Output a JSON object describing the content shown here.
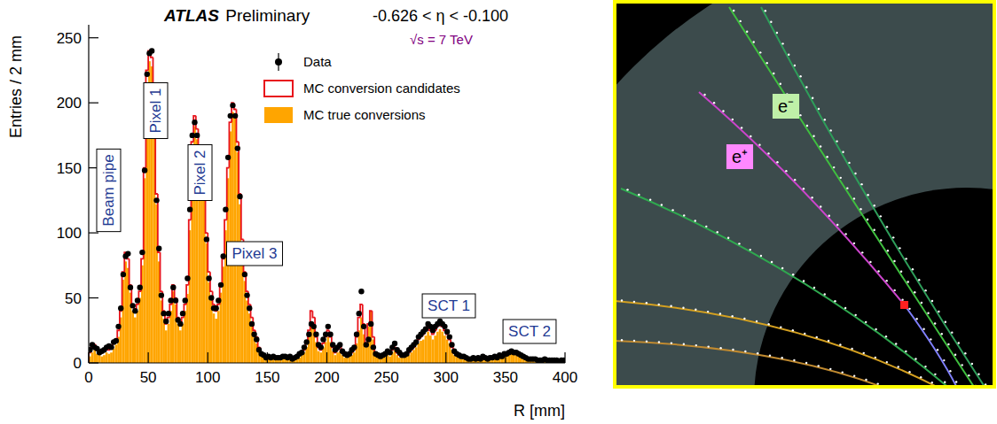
{
  "chart_data": {
    "type": "histogram",
    "title": "ATLAS",
    "subtitle": "Preliminary",
    "annotations": [
      "-0.626 < η < -0.100",
      "√s = 7 TeV"
    ],
    "region_labels": [
      "Beam pipe",
      "Pixel 1",
      "Pixel 2",
      "Pixel 3",
      "SCT 1",
      "SCT 2"
    ],
    "xlabel": "R [mm]",
    "ylabel": "Entries / 2 mm",
    "xlim": [
      0,
      400
    ],
    "ylim": [
      0,
      260
    ],
    "xticks": [
      0,
      50,
      100,
      150,
      200,
      250,
      300,
      350,
      400
    ],
    "yticks": [
      0,
      50,
      100,
      150,
      200,
      250
    ],
    "grid": false,
    "legend": "top-right",
    "bins": [
      0,
      2,
      4,
      6,
      8,
      10,
      12,
      14,
      16,
      18,
      20,
      22,
      24,
      26,
      28,
      30,
      32,
      34,
      36,
      38,
      40,
      42,
      44,
      46,
      48,
      50,
      52,
      54,
      56,
      58,
      60,
      62,
      64,
      66,
      68,
      70,
      72,
      74,
      76,
      78,
      80,
      82,
      84,
      86,
      88,
      90,
      92,
      94,
      96,
      98,
      100,
      102,
      104,
      106,
      108,
      110,
      112,
      114,
      116,
      118,
      120,
      122,
      124,
      126,
      128,
      130,
      132,
      134,
      136,
      138,
      140,
      142,
      144,
      146,
      148,
      150,
      152,
      154,
      156,
      158,
      160,
      162,
      164,
      166,
      168,
      170,
      172,
      174,
      176,
      178,
      180,
      182,
      184,
      186,
      188,
      190,
      192,
      194,
      196,
      198,
      200,
      202,
      204,
      206,
      208,
      210,
      212,
      214,
      216,
      218,
      220,
      222,
      224,
      226,
      228,
      230,
      232,
      234,
      236,
      238,
      240,
      242,
      244,
      246,
      248,
      250,
      252,
      254,
      256,
      258,
      260,
      262,
      264,
      266,
      268,
      270,
      272,
      274,
      276,
      278,
      280,
      282,
      284,
      286,
      288,
      290,
      292,
      294,
      296,
      298,
      300,
      302,
      304,
      306,
      308,
      310,
      312,
      314,
      316,
      318,
      320,
      322,
      324,
      326,
      328,
      330,
      332,
      334,
      336,
      338,
      340,
      342,
      344,
      346,
      348,
      350,
      352,
      354,
      356,
      358,
      360,
      362,
      364,
      366,
      368,
      370,
      372,
      374,
      376,
      378,
      380,
      382,
      384,
      386,
      388,
      390,
      392,
      394,
      396,
      398,
      400
    ],
    "series": [
      {
        "name": "Data",
        "type": "scatter",
        "marker": "circle",
        "color": "#000000",
        "values": [
          10,
          14,
          12,
          11,
          8,
          9,
          10,
          12,
          13,
          12,
          16,
          17,
          28,
          42,
          68,
          82,
          84,
          58,
          44,
          40,
          48,
          58,
          85,
          148,
          222,
          238,
          240,
          185,
          125,
          88,
          52,
          38,
          32,
          38,
          48,
          58,
          48,
          33,
          30,
          38,
          48,
          65,
          118,
          175,
          185,
          175,
          155,
          135,
          138,
          95,
          65,
          50,
          42,
          42,
          48,
          60,
          82,
          118,
          158,
          190,
          198,
          190,
          165,
          128,
          90,
          68,
          52,
          42,
          30,
          22,
          18,
          10,
          7,
          6,
          4,
          5,
          4,
          5,
          4,
          4,
          4,
          5,
          5,
          4,
          5,
          3,
          4,
          5,
          7,
          8,
          12,
          16,
          22,
          30,
          28,
          22,
          14,
          12,
          18,
          22,
          28,
          22,
          14,
          10,
          12,
          14,
          9,
          7,
          6,
          7,
          10,
          12,
          22,
          38,
          55,
          28,
          14,
          18,
          30,
          12,
          7,
          6,
          5,
          6,
          7,
          9,
          8,
          12,
          15,
          10,
          8,
          6,
          6,
          7,
          10,
          12,
          14,
          16,
          20,
          22,
          24,
          26,
          30,
          28,
          25,
          28,
          30,
          32,
          30,
          28,
          24,
          20,
          14,
          9,
          7,
          6,
          5,
          5,
          4,
          3,
          3,
          4,
          3,
          4,
          3,
          5,
          4,
          3,
          4,
          4,
          5,
          4,
          6,
          5,
          7,
          7,
          8,
          9,
          8,
          8,
          7,
          6,
          5,
          4,
          3,
          3,
          3,
          3,
          2,
          2,
          2,
          3,
          2,
          2,
          2,
          2,
          2,
          1,
          2,
          2
        ]
      },
      {
        "name": "MC conversion candidates",
        "type": "step",
        "color": "#e8141c",
        "values": [
          8,
          12,
          14,
          10,
          9,
          8,
          9,
          12,
          10,
          12,
          15,
          18,
          25,
          40,
          70,
          85,
          80,
          60,
          45,
          40,
          45,
          55,
          80,
          150,
          225,
          240,
          235,
          190,
          130,
          85,
          55,
          40,
          30,
          35,
          45,
          60,
          50,
          35,
          30,
          35,
          45,
          60,
          110,
          170,
          190,
          180,
          160,
          150,
          140,
          100,
          70,
          55,
          45,
          40,
          45,
          60,
          80,
          110,
          150,
          185,
          200,
          195,
          170,
          130,
          95,
          70,
          55,
          45,
          35,
          25,
          20,
          12,
          8,
          6,
          5,
          5,
          4,
          4,
          5,
          4,
          4,
          5,
          4,
          4,
          5,
          4,
          4,
          5,
          6,
          8,
          10,
          15,
          25,
          40,
          35,
          20,
          12,
          10,
          15,
          20,
          25,
          20,
          12,
          8,
          10,
          12,
          8,
          6,
          5,
          6,
          8,
          10,
          20,
          35,
          45,
          30,
          15,
          30,
          40,
          20,
          8,
          6,
          5,
          5,
          6,
          8,
          7,
          10,
          12,
          8,
          6,
          5,
          5,
          6,
          8,
          10,
          12,
          15,
          18,
          20,
          22,
          25,
          28,
          25,
          22,
          25,
          28,
          30,
          28,
          25,
          22,
          18,
          12,
          8,
          6,
          5,
          4,
          4,
          3,
          3,
          3,
          3,
          3,
          3,
          3,
          4,
          3,
          3,
          3,
          4,
          4,
          4,
          5,
          5,
          6,
          6,
          7,
          8,
          8,
          7,
          6,
          5,
          4,
          3,
          3,
          3,
          3,
          2,
          2,
          2,
          2,
          2,
          2,
          2,
          2,
          2,
          2,
          2,
          2,
          2
        ]
      },
      {
        "name": "MC true conversions",
        "type": "bar",
        "color": "#ffa500",
        "values": [
          5,
          8,
          10,
          7,
          6,
          5,
          6,
          8,
          7,
          8,
          11,
          14,
          20,
          35,
          64,
          78,
          73,
          54,
          40,
          35,
          40,
          50,
          75,
          142,
          215,
          232,
          228,
          182,
          122,
          78,
          48,
          34,
          25,
          30,
          40,
          55,
          45,
          30,
          25,
          30,
          40,
          53,
          102,
          160,
          182,
          172,
          152,
          142,
          132,
          92,
          62,
          48,
          38,
          34,
          40,
          54,
          74,
          102,
          142,
          178,
          193,
          188,
          162,
          122,
          88,
          63,
          48,
          38,
          28,
          20,
          15,
          9,
          5,
          4,
          3,
          3,
          3,
          3,
          3,
          3,
          3,
          3,
          3,
          3,
          3,
          3,
          3,
          3,
          4,
          6,
          8,
          12,
          20,
          30,
          28,
          16,
          9,
          8,
          12,
          16,
          20,
          16,
          9,
          6,
          8,
          9,
          6,
          4,
          4,
          5,
          6,
          8,
          15,
          25,
          35,
          22,
          12,
          28,
          40,
          18,
          6,
          4,
          4,
          4,
          5,
          6,
          5,
          8,
          10,
          6,
          4,
          4,
          4,
          5,
          6,
          8,
          10,
          12,
          15,
          17,
          18,
          21,
          24,
          21,
          18,
          21,
          24,
          26,
          24,
          21,
          18,
          15,
          10,
          6,
          5,
          4,
          3,
          3,
          2,
          2,
          2,
          2,
          2,
          2,
          2,
          3,
          2,
          2,
          2,
          3,
          3,
          3,
          4,
          4,
          5,
          5,
          6,
          7,
          7,
          6,
          5,
          4,
          3,
          2,
          2,
          2,
          2,
          1,
          1,
          1,
          1,
          1,
          1,
          1,
          1,
          1,
          1,
          1,
          1,
          1
        ]
      }
    ]
  },
  "event_display": {
    "track_labels": [
      "e⁺",
      "e⁻"
    ]
  }
}
